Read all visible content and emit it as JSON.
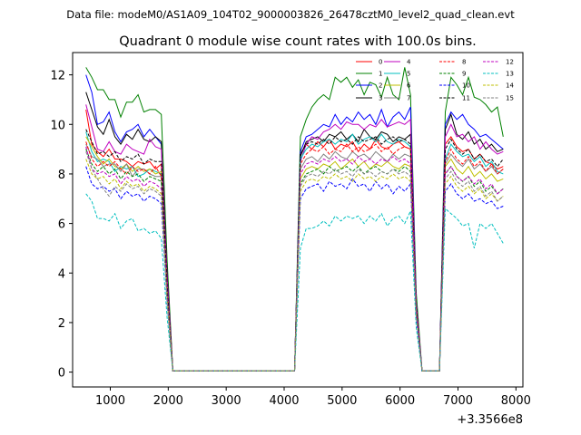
{
  "chart_data": {
    "type": "line",
    "suptitle": "Data file: modeM0/AS1A09_104T02_9000003826_26478cztM0_level2_quad_clean.evt",
    "title": "Quadrant 0 module wise count rates with 100.0s bins.",
    "xlabel": "",
    "ylabel": "",
    "x_offset_label": "+3.3566e8",
    "xlim": [
      350,
      8120
    ],
    "ylim": [
      -0.6,
      12.9
    ],
    "x_ticks": [
      1000,
      2000,
      3000,
      4000,
      5000,
      6000,
      7000,
      8000
    ],
    "x_tick_labels": [
      "1000",
      "2000",
      "3000",
      "4000",
      "5000",
      "6000",
      "7000",
      "8000"
    ],
    "y_ticks": [
      0,
      2,
      4,
      6,
      8,
      10,
      12
    ],
    "y_tick_labels": [
      "0",
      "2",
      "4",
      "6",
      "8",
      "10",
      "12"
    ],
    "legend_location": "upper right",
    "x": [
      580,
      680,
      780,
      880,
      980,
      1080,
      1180,
      1280,
      1380,
      1480,
      1580,
      1680,
      1780,
      1880,
      1980,
      2080,
      4180,
      4280,
      4380,
      4480,
      4580,
      4680,
      4780,
      4880,
      4980,
      5080,
      5180,
      5280,
      5380,
      5480,
      5580,
      5680,
      5780,
      5880,
      5980,
      6080,
      6180,
      6280,
      6380,
      6680,
      6780,
      6880,
      6980,
      7080,
      7180,
      7280,
      7380,
      7480,
      7580,
      7680,
      7780
    ],
    "series": [
      {
        "name": "0",
        "color": "#ff0000",
        "style": "solid",
        "values": [
          10.6,
          9.2,
          8.9,
          8.7,
          9.0,
          8.6,
          8.6,
          8.5,
          8.3,
          8.5,
          8.4,
          8.5,
          8.2,
          8.4,
          3.5,
          0.05,
          0.05,
          8.8,
          9.2,
          9.0,
          9.3,
          9.1,
          9.4,
          9.0,
          9.2,
          9.1,
          9.3,
          8.9,
          9.2,
          9.0,
          9.4,
          9.1,
          9.0,
          9.2,
          9.3,
          9.1,
          9.0,
          2.5,
          0.05,
          0.05,
          9.2,
          9.5,
          9.1,
          8.9,
          9.0,
          8.6,
          8.8,
          8.5,
          8.4,
          8.2,
          8.3
        ]
      },
      {
        "name": "1",
        "color": "#008000",
        "style": "solid",
        "values": [
          12.3,
          11.9,
          11.4,
          11.4,
          11.0,
          11.0,
          10.3,
          10.9,
          10.9,
          11.2,
          10.5,
          10.6,
          10.6,
          10.4,
          4.5,
          0.05,
          0.05,
          9.5,
          10.2,
          10.7,
          11.0,
          11.2,
          11.0,
          11.9,
          11.7,
          11.9,
          11.5,
          11.8,
          11.2,
          11.7,
          11.6,
          11.1,
          11.9,
          11.2,
          11.0,
          12.3,
          11.2,
          3.2,
          0.05,
          0.05,
          10.5,
          11.9,
          11.6,
          11.2,
          11.9,
          11.1,
          11.0,
          10.8,
          10.5,
          10.7,
          9.5
        ]
      },
      {
        "name": "2",
        "color": "#0000ff",
        "style": "solid",
        "values": [
          12.0,
          11.3,
          10.0,
          10.1,
          10.5,
          9.7,
          9.3,
          9.7,
          9.8,
          10.0,
          9.5,
          9.8,
          9.5,
          9.2,
          3.9,
          0.05,
          0.05,
          8.9,
          9.5,
          9.6,
          9.8,
          10.0,
          9.9,
          10.4,
          10.0,
          10.3,
          10.1,
          10.5,
          10.2,
          10.4,
          10.0,
          10.6,
          9.9,
          10.3,
          10.5,
          10.2,
          10.7,
          2.8,
          0.05,
          0.05,
          10.0,
          10.5,
          10.2,
          10.4,
          10.0,
          9.8,
          9.5,
          9.6,
          9.4,
          9.2,
          9.0
        ]
      },
      {
        "name": "3",
        "color": "#000000",
        "style": "solid",
        "values": [
          11.3,
          10.6,
          9.9,
          9.6,
          10.2,
          9.5,
          9.2,
          9.6,
          9.4,
          9.8,
          9.4,
          9.3,
          9.5,
          9.3,
          4.0,
          0.05,
          0.05,
          8.7,
          9.3,
          9.4,
          9.5,
          9.3,
          9.6,
          9.5,
          9.7,
          9.4,
          9.6,
          9.3,
          9.8,
          9.5,
          9.4,
          9.7,
          9.6,
          9.3,
          9.5,
          9.4,
          9.6,
          2.7,
          0.05,
          0.05,
          9.8,
          10.4,
          9.6,
          9.4,
          9.7,
          9.2,
          9.4,
          9.0,
          9.2,
          8.9,
          9.0
        ]
      },
      {
        "name": "4",
        "color": "#bf00bf",
        "style": "solid",
        "values": [
          10.8,
          9.9,
          9.0,
          8.9,
          9.3,
          8.9,
          8.8,
          9.2,
          9.0,
          8.9,
          8.8,
          9.4,
          9.1,
          9.0,
          3.8,
          0.05,
          0.05,
          8.5,
          9.2,
          9.5,
          9.4,
          9.7,
          9.8,
          10.0,
          9.8,
          10.1,
          10.0,
          10.0,
          9.8,
          10.0,
          9.9,
          10.2,
          9.9,
          10.0,
          10.1,
          10.0,
          10.2,
          2.8,
          0.05,
          0.05,
          9.5,
          10.0,
          9.5,
          9.6,
          9.3,
          9.5,
          9.0,
          9.3,
          9.0,
          8.8,
          8.9
        ]
      },
      {
        "name": "5",
        "color": "#00bfbf",
        "style": "solid",
        "values": [
          9.7,
          8.9,
          8.5,
          8.6,
          8.5,
          8.1,
          8.3,
          8.2,
          8.3,
          7.9,
          8.0,
          8.2,
          8.1,
          8.0,
          3.0,
          0.05,
          0.05,
          8.6,
          9.0,
          9.2,
          9.1,
          9.3,
          9.4,
          9.2,
          9.4,
          9.3,
          9.6,
          9.2,
          9.4,
          9.5,
          9.3,
          9.6,
          9.3,
          9.2,
          9.4,
          9.3,
          9.1,
          2.6,
          0.05,
          0.05,
          8.6,
          9.2,
          8.9,
          8.7,
          8.8,
          8.5,
          8.7,
          8.3,
          8.5,
          8.1,
          8.0
        ]
      },
      {
        "name": "6",
        "color": "#bfbf00",
        "style": "solid",
        "values": [
          9.5,
          9.1,
          8.7,
          8.4,
          8.6,
          8.3,
          8.2,
          8.4,
          8.1,
          8.3,
          8.1,
          8.2,
          8.0,
          8.1,
          3.3,
          0.05,
          0.05,
          7.8,
          8.2,
          8.3,
          8.2,
          8.4,
          8.3,
          8.5,
          8.2,
          8.4,
          8.6,
          8.3,
          8.5,
          8.2,
          8.4,
          8.3,
          8.5,
          8.3,
          8.2,
          8.4,
          8.3,
          2.4,
          0.05,
          0.05,
          8.3,
          8.6,
          8.2,
          8.0,
          8.3,
          7.9,
          8.1,
          7.8,
          8.0,
          7.7,
          7.8
        ]
      },
      {
        "name": "7",
        "color": "#808080",
        "style": "solid",
        "values": [
          9.2,
          8.7,
          8.6,
          8.3,
          8.4,
          8.4,
          8.1,
          8.4,
          7.9,
          8.2,
          8.2,
          8.0,
          7.9,
          7.9,
          3.1,
          0.05,
          0.05,
          8.2,
          8.6,
          8.7,
          8.5,
          8.8,
          8.6,
          8.9,
          8.7,
          8.6,
          8.9,
          8.7,
          8.8,
          8.6,
          8.9,
          8.7,
          8.5,
          8.8,
          8.6,
          8.8,
          8.7,
          2.5,
          0.05,
          0.05,
          8.4,
          8.8,
          8.5,
          8.3,
          8.6,
          8.2,
          8.4,
          8.1,
          8.3,
          8.0,
          8.2
        ]
      },
      {
        "name": "8",
        "color": "#ff0000",
        "style": "dashed",
        "values": [
          9.3,
          8.6,
          8.3,
          8.5,
          8.3,
          8.5,
          8.2,
          8.0,
          8.3,
          8.1,
          8.2,
          8.0,
          8.3,
          7.9,
          3.2,
          0.05,
          0.05,
          8.4,
          8.8,
          9.0,
          8.9,
          9.1,
          8.8,
          9.0,
          8.9,
          9.2,
          8.9,
          9.1,
          8.9,
          9.0,
          9.2,
          8.9,
          9.1,
          8.8,
          9.0,
          9.1,
          9.0,
          2.6,
          0.05,
          0.05,
          8.5,
          9.0,
          8.6,
          8.4,
          8.7,
          8.3,
          8.5,
          8.1,
          8.4,
          8.0,
          8.2
        ]
      },
      {
        "name": "9",
        "color": "#008000",
        "style": "dashed",
        "values": [
          9.0,
          8.4,
          8.1,
          8.3,
          8.0,
          8.2,
          7.8,
          8.1,
          7.9,
          8.0,
          7.7,
          7.9,
          7.8,
          7.7,
          3.0,
          0.05,
          0.05,
          7.6,
          8.0,
          8.1,
          8.2,
          8.0,
          8.3,
          8.1,
          8.2,
          8.3,
          8.1,
          8.3,
          8.0,
          8.2,
          8.3,
          8.1,
          8.0,
          8.2,
          8.1,
          8.3,
          8.1,
          2.4,
          0.05,
          0.05,
          8.0,
          8.3,
          7.9,
          7.7,
          7.9,
          7.5,
          7.7,
          7.3,
          7.5,
          7.2,
          7.4
        ]
      },
      {
        "name": "10",
        "color": "#0000ff",
        "style": "dashed",
        "values": [
          8.3,
          7.6,
          7.4,
          7.5,
          7.3,
          7.4,
          7.0,
          7.3,
          7.1,
          7.2,
          6.9,
          7.1,
          7.0,
          6.8,
          2.8,
          0.05,
          0.05,
          7.0,
          7.4,
          7.5,
          7.6,
          7.3,
          7.7,
          7.5,
          7.6,
          7.4,
          7.8,
          7.5,
          7.6,
          7.3,
          7.7,
          7.4,
          7.6,
          7.2,
          7.5,
          7.3,
          7.6,
          2.2,
          0.05,
          0.05,
          7.3,
          7.6,
          7.2,
          7.0,
          7.2,
          6.9,
          7.0,
          6.8,
          6.9,
          6.6,
          6.7
        ]
      },
      {
        "name": "11",
        "color": "#000000",
        "style": "dashed",
        "values": [
          9.8,
          9.3,
          8.8,
          8.9,
          8.7,
          8.9,
          8.5,
          8.7,
          8.6,
          8.8,
          8.4,
          8.6,
          8.5,
          8.5,
          3.4,
          0.05,
          0.05,
          8.8,
          9.2,
          9.3,
          9.2,
          9.4,
          9.2,
          9.5,
          9.3,
          9.4,
          9.2,
          9.5,
          9.3,
          9.4,
          9.5,
          9.2,
          9.4,
          9.5,
          9.3,
          9.4,
          9.2,
          2.7,
          0.05,
          0.05,
          9.0,
          9.4,
          9.0,
          8.8,
          9.0,
          8.6,
          8.8,
          8.5,
          8.6,
          8.3,
          8.6
        ]
      },
      {
        "name": "12",
        "color": "#bf00bf",
        "style": "dashed",
        "values": [
          9.1,
          8.2,
          8.0,
          8.1,
          7.9,
          8.0,
          7.6,
          7.9,
          7.7,
          7.8,
          7.5,
          7.7,
          7.6,
          7.4,
          3.0,
          0.05,
          0.05,
          8.0,
          8.4,
          8.5,
          8.4,
          8.6,
          8.5,
          8.7,
          8.5,
          8.6,
          8.4,
          8.7,
          8.5,
          8.6,
          8.4,
          8.6,
          8.5,
          8.7,
          8.5,
          8.6,
          8.4,
          2.5,
          0.05,
          0.05,
          8.0,
          8.3,
          7.9,
          7.7,
          7.9,
          7.6,
          7.8,
          7.4,
          7.6,
          7.2,
          7.4
        ]
      },
      {
        "name": "13",
        "color": "#00bfbf",
        "style": "dashed",
        "values": [
          7.2,
          6.9,
          6.2,
          6.2,
          6.1,
          6.4,
          5.8,
          6.1,
          6.2,
          5.7,
          5.8,
          5.6,
          5.7,
          5.4,
          2.2,
          0.05,
          0.05,
          5.0,
          5.8,
          5.8,
          5.9,
          6.1,
          5.9,
          6.3,
          6.1,
          6.3,
          6.2,
          6.3,
          6.0,
          6.3,
          6.1,
          6.4,
          5.9,
          6.2,
          6.3,
          6.0,
          6.5,
          1.8,
          0.05,
          0.05,
          6.6,
          6.4,
          6.2,
          5.9,
          6.0,
          5.0,
          6.0,
          5.8,
          6.0,
          5.6,
          5.2
        ]
      },
      {
        "name": "14",
        "color": "#bfbf00",
        "style": "dashed",
        "values": [
          8.6,
          8.0,
          7.8,
          7.9,
          7.6,
          7.8,
          7.4,
          7.7,
          7.5,
          7.6,
          7.3,
          7.5,
          7.4,
          7.2,
          2.9,
          0.05,
          0.05,
          7.3,
          7.7,
          7.8,
          7.7,
          7.9,
          7.8,
          8.0,
          7.8,
          7.9,
          7.7,
          8.0,
          7.8,
          7.9,
          7.7,
          7.9,
          7.8,
          8.0,
          7.8,
          7.9,
          7.7,
          2.3,
          0.05,
          0.05,
          7.6,
          7.9,
          7.5,
          7.3,
          7.5,
          7.2,
          7.4,
          7.0,
          7.2,
          6.9,
          7.1
        ]
      },
      {
        "name": "15",
        "color": "#808080",
        "style": "dashed",
        "values": [
          8.9,
          8.2,
          7.8,
          7.4,
          7.1,
          7.5,
          7.3,
          7.6,
          7.4,
          7.5,
          7.2,
          7.4,
          7.3,
          7.1,
          2.9,
          0.05,
          0.05,
          7.5,
          7.9,
          8.0,
          7.9,
          8.1,
          8.0,
          8.2,
          8.0,
          8.1,
          7.9,
          8.2,
          8.0,
          8.1,
          7.9,
          8.1,
          8.0,
          8.2,
          8.0,
          8.1,
          7.9,
          2.4,
          0.05,
          0.05,
          7.8,
          8.1,
          7.7,
          7.5,
          7.7,
          7.3,
          7.5,
          7.1,
          7.3,
          6.9,
          7.1
        ]
      }
    ]
  }
}
